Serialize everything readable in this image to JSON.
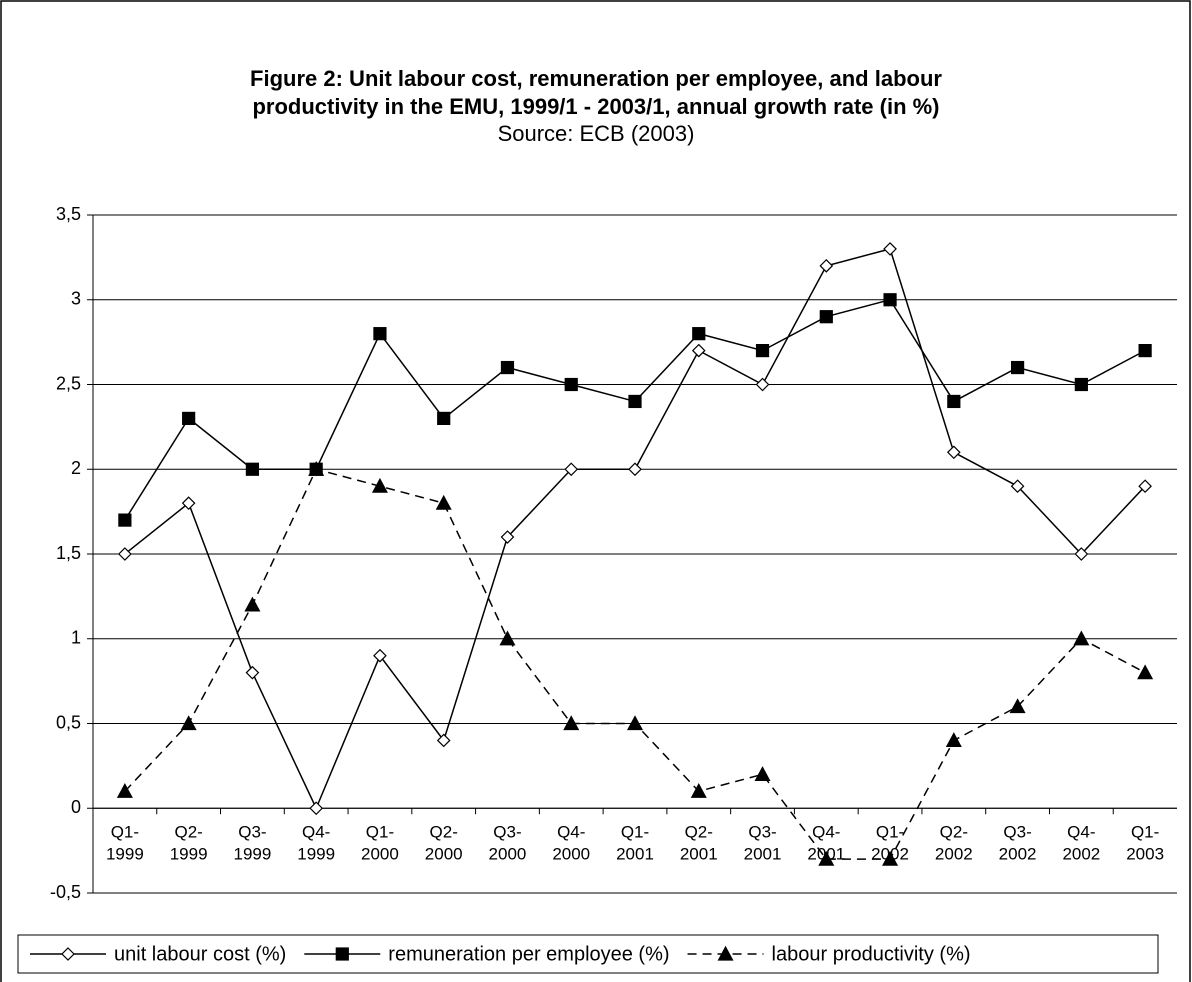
{
  "chart_data": {
    "type": "line",
    "title": [
      "Figure 2: Unit labour cost, remuneration per employee, and labour",
      "productivity in the EMU, 1999/1 - 2003/1, annual growth rate (in %)"
    ],
    "subtitle": "Source: ECB (2003)",
    "categories": [
      "Q1-\n1999",
      "Q2-\n1999",
      "Q3-\n1999",
      "Q4-\n1999",
      "Q1-\n2000",
      "Q2-\n2000",
      "Q3-\n2000",
      "Q4-\n2000",
      "Q1-\n2001",
      "Q2-\n2001",
      "Q3-\n2001",
      "Q4-\n2001",
      "Q1-\n2002",
      "Q2-\n2002",
      "Q3-\n2002",
      "Q4-\n2002",
      "Q1-\n2003"
    ],
    "series": [
      {
        "name": "unit labour cost (%)",
        "color": "#000000",
        "marker": "diamond",
        "marker_fill": "#ffffff",
        "dashed": false,
        "values": [
          1.5,
          1.8,
          0.8,
          0,
          0.9,
          0.4,
          1.6,
          2.0,
          2.0,
          2.7,
          2.5,
          3.2,
          3.3,
          2.1,
          1.9,
          1.5,
          1.9
        ]
      },
      {
        "name": "remuneration per employee (%)",
        "color": "#000000",
        "marker": "square",
        "marker_fill": "#000000",
        "dashed": false,
        "values": [
          1.7,
          2.3,
          2.0,
          2.0,
          2.8,
          2.3,
          2.6,
          2.5,
          2.4,
          2.8,
          2.7,
          2.9,
          3.0,
          2.4,
          2.6,
          2.5,
          2.7
        ]
      },
      {
        "name": "labour productivity (%)",
        "color": "#000000",
        "marker": "triangle",
        "marker_fill": "#000000",
        "dashed": true,
        "values": [
          0.1,
          0.5,
          1.2,
          2.0,
          1.9,
          1.8,
          1.0,
          0.5,
          0.5,
          0.1,
          0.2,
          -0.3,
          -0.3,
          0.4,
          0.6,
          1.0,
          0.8
        ]
      }
    ],
    "ylim": [
      -0.5,
      3.5
    ],
    "yticks": [
      {
        "value": -0.5,
        "label": "-0,5"
      },
      0,
      {
        "value": 0.5,
        "label": "0,5"
      },
      1,
      {
        "value": 1.5,
        "label": "1,5"
      },
      2,
      {
        "value": 2.5,
        "label": "2,5"
      },
      3,
      {
        "value": 3.5,
        "label": "3,5"
      }
    ],
    "grid": true,
    "legend": "bottom"
  }
}
